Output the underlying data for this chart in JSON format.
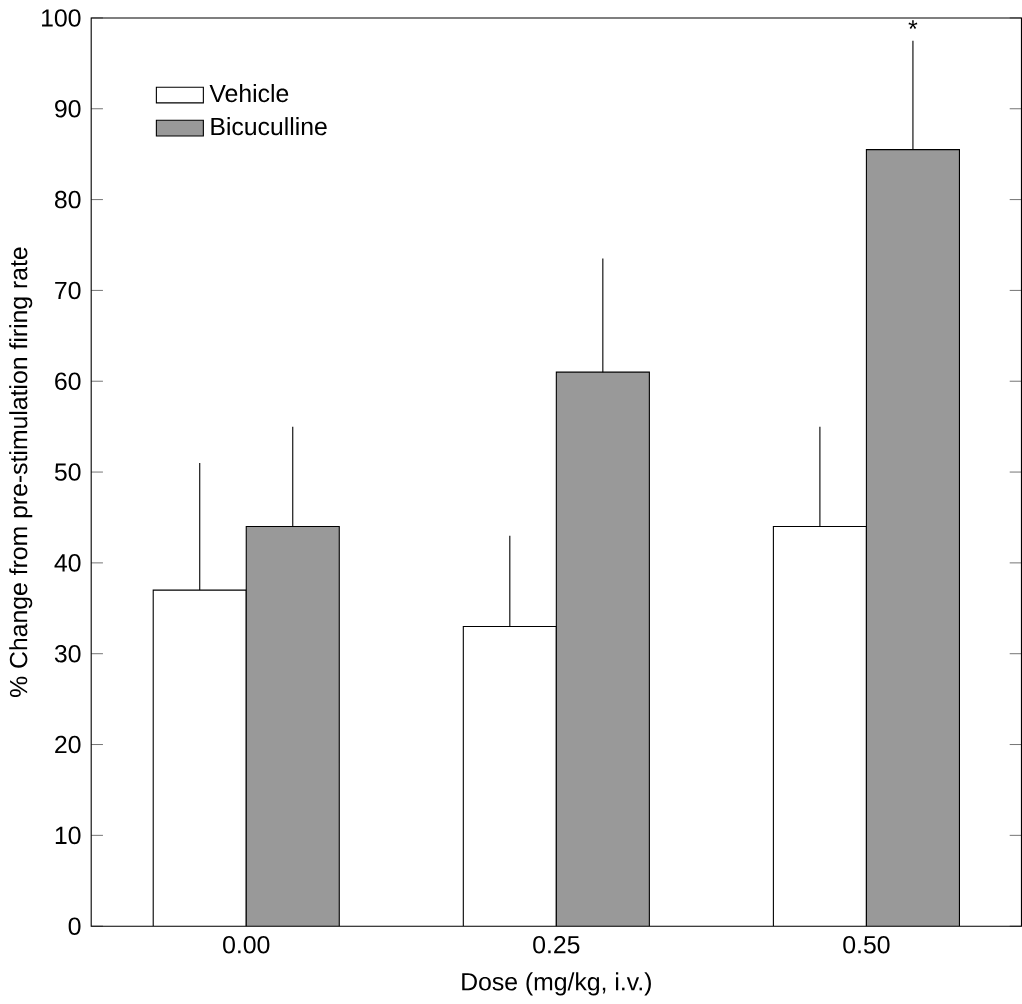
{
  "chart_data": {
    "type": "bar",
    "xlabel": "Dose (mg/kg, i.v.)",
    "ylabel": "% Change from pre-stimulation firing rate",
    "categories": [
      "0.00",
      "0.25",
      "0.50"
    ],
    "series": [
      {
        "name": "Vehicle",
        "color": "#ffffff",
        "values": [
          37,
          33,
          44
        ],
        "errors": [
          [
            37,
            51
          ],
          [
            33,
            43
          ],
          [
            44,
            55
          ]
        ]
      },
      {
        "name": "Bicuculline",
        "color": "#999999",
        "values": [
          44,
          61,
          85.5
        ],
        "errors": [
          [
            44,
            55
          ],
          [
            61,
            73.5
          ],
          [
            85.5,
            97.5
          ]
        ]
      }
    ],
    "ylim": [
      0,
      100
    ],
    "yticks": [
      0,
      10,
      20,
      30,
      40,
      50,
      60,
      70,
      80,
      90,
      100
    ],
    "legend": "top left",
    "annotations": [
      "*"
    ]
  }
}
